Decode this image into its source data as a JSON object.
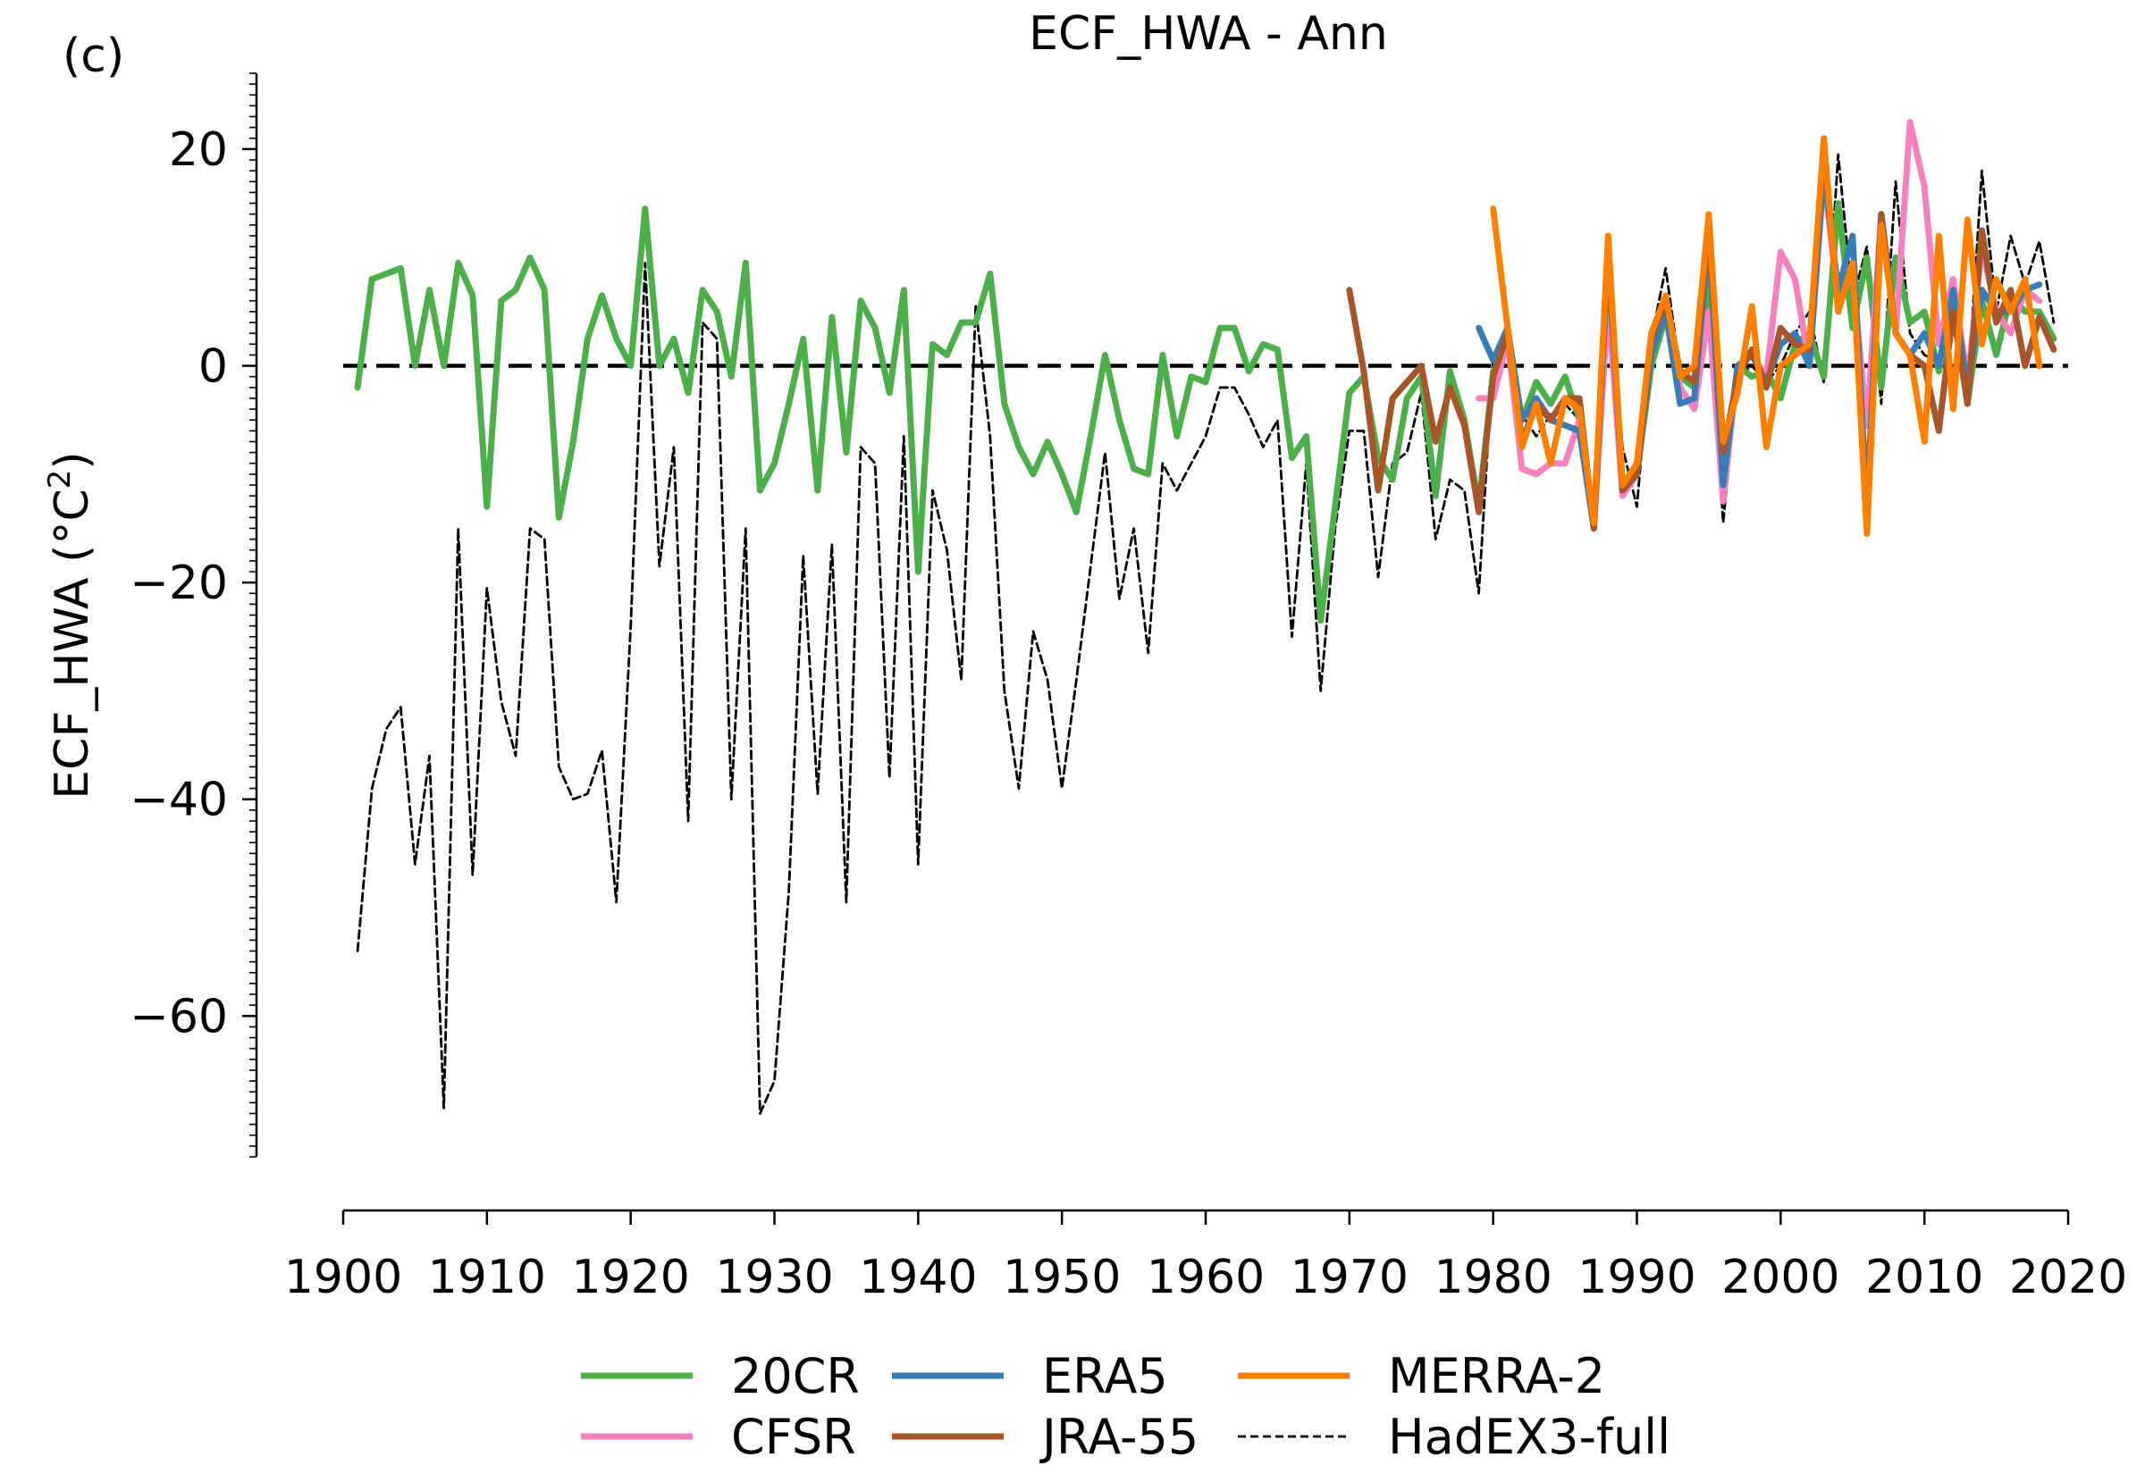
{
  "chart_data": {
    "type": "line",
    "panel_label": "(c)",
    "title": "ECF_HWA - Ann",
    "ylabel_main": "ECF_HWA (°C",
    "ylabel_sup": "2",
    "ylabel_close": ")",
    "xlabel": "",
    "xlim": [
      1900,
      2020
    ],
    "ylim": [
      -73,
      27
    ],
    "x_ticks": [
      1900,
      1910,
      1920,
      1930,
      1940,
      1950,
      1960,
      1970,
      1980,
      1990,
      2000,
      2010,
      2020
    ],
    "y_ticks": [
      20,
      0,
      -20,
      -40,
      -60
    ],
    "y_tick_labels": [
      "20",
      "0",
      "−20",
      "−40",
      "−60"
    ],
    "reference_line": 0,
    "legend_placement": "bottom",
    "grid": false,
    "series": [
      {
        "name": "20CR",
        "color": "#4daf4a",
        "style": "solid",
        "start": 1901,
        "values": [
          -2,
          8,
          8.5,
          9,
          0,
          7,
          0,
          9.5,
          6.5,
          -13,
          6,
          7,
          10,
          7,
          -14,
          -7,
          2.5,
          6.5,
          2.5,
          0,
          14.5,
          0,
          2.5,
          -2.5,
          7,
          5,
          -1,
          9.5,
          -11.5,
          -9,
          -3.5,
          2.5,
          -11.5,
          4.5,
          -8,
          6,
          3.5,
          -2.5,
          7,
          -19,
          2,
          1,
          4,
          4,
          8.5,
          -3.5,
          -7.5,
          -10,
          -7,
          -10,
          -13.5,
          -6.5,
          1,
          -5,
          -9.5,
          -10,
          1,
          -6.5,
          -1,
          -1.5,
          3.5,
          3.5,
          -0.5,
          2,
          1.5,
          -8.5,
          -6.5,
          -23.5,
          -13,
          -2.5,
          -1,
          -8.5,
          -10.5,
          -3,
          -1,
          -12,
          -0.5,
          -5,
          -13,
          -0.5,
          2,
          -5,
          -1.5,
          -3.5,
          -1,
          -5,
          -15,
          6.5,
          -11.5,
          -10,
          0,
          4.5,
          -1,
          -2,
          8.5,
          -12.5,
          0,
          -1,
          -0.5,
          -3,
          2,
          3,
          -1,
          15,
          3.5,
          10,
          -2,
          10,
          4,
          5,
          -0.5,
          6,
          -3.5,
          6,
          1,
          6.5,
          5,
          5,
          2.5
        ]
      },
      {
        "name": "CFSR",
        "color": "#f781bf",
        "style": "solid",
        "start": 1979,
        "values": [
          -3,
          -3,
          2.5,
          -9.5,
          -10,
          -9,
          -9,
          -5,
          -15,
          6,
          -12,
          -10,
          2,
          6,
          -2,
          -4,
          5,
          -12.5,
          0,
          1,
          -1,
          10.5,
          8,
          0,
          17.5,
          6,
          8.5,
          -5.5,
          14,
          3,
          22.5,
          16.5,
          2,
          8,
          -1.5,
          11,
          5,
          3,
          7,
          6
        ]
      },
      {
        "name": "ERA5",
        "color": "#377eb8",
        "style": "solid",
        "start": 1979,
        "values": [
          3.5,
          0.5,
          3.5,
          -5,
          -3,
          -5,
          -5.5,
          -6,
          -15,
          10,
          -11,
          -10,
          1,
          5,
          -3.5,
          -3,
          12,
          -11,
          0,
          1,
          -1.5,
          2,
          3,
          0,
          18,
          7,
          12,
          -13,
          14,
          3,
          1,
          3,
          0,
          7,
          -2,
          7,
          5,
          5,
          7,
          7.5
        ]
      },
      {
        "name": "JRA-55",
        "color": "#a65628",
        "style": "solid",
        "start": 1970,
        "values": [
          7,
          -0.5,
          -11.5,
          -3,
          -1.5,
          0,
          -7,
          -2,
          -5.5,
          -13.5,
          -1,
          3,
          -7,
          -3.5,
          -5,
          -3,
          -3,
          -15,
          11,
          -11.5,
          -10,
          2.5,
          6,
          -0.5,
          -1.5,
          13,
          -8,
          -1,
          1.5,
          -2,
          3.5,
          2,
          1.5,
          20.5,
          5,
          9.5,
          -15,
          14,
          3,
          1,
          0,
          -6,
          5,
          -3.5,
          12.5,
          4,
          7,
          0,
          4.5,
          1.5
        ]
      },
      {
        "name": "MERRA-2",
        "color": "#ff7f00",
        "style": "solid",
        "start": 1980,
        "values": [
          14.5,
          3.5,
          -7.5,
          -3.5,
          -9,
          -3,
          -4,
          -14.5,
          12,
          -11,
          -9,
          3,
          6.5,
          -1,
          0,
          14,
          -7,
          -2.5,
          5.5,
          -7.5,
          0,
          1,
          2,
          21,
          5,
          9.5,
          -15.5,
          13,
          3,
          1,
          -7,
          12,
          -4,
          13.5,
          2,
          8,
          5,
          8,
          0
        ]
      },
      {
        "name": "HadEX3-full",
        "color": "#000000",
        "style": "dashed",
        "start": 1901,
        "values": [
          -54,
          -39,
          -33.5,
          -31.5,
          -46,
          -36,
          -68.5,
          -15,
          -47,
          -20.5,
          -31,
          -36,
          -15,
          -16,
          -37,
          -40,
          -39.5,
          -35.5,
          -49.5,
          -24,
          9.5,
          -18.5,
          -7.5,
          -42,
          4,
          2.5,
          -40,
          -15,
          -69,
          -66,
          -48.5,
          -17.5,
          -39.5,
          -16.5,
          -49.5,
          -7.5,
          -9,
          -38,
          -6.5,
          -46,
          -11.5,
          -17,
          -29,
          5.5,
          -6.5,
          -30,
          -39,
          -24.5,
          -29,
          -39,
          -29,
          -18.5,
          -8,
          -21.5,
          -15,
          -26.5,
          -9,
          -11.5,
          -9,
          -6.5,
          -2,
          -2,
          -4.5,
          -7.5,
          -5,
          -25,
          -9,
          -30,
          -15,
          -6,
          -6,
          -19.5,
          -9,
          -8,
          -2.5,
          -16,
          -10.5,
          -11.5,
          -21,
          1,
          2,
          -4.5,
          -6.5,
          -4.5,
          -3.5,
          -5,
          -15,
          10,
          -7.5,
          -13,
          2.5,
          9,
          -0.5,
          -2,
          8,
          -14.5,
          -1,
          0,
          -1.5,
          0,
          3,
          5,
          -1.5,
          19.5,
          6,
          11,
          -3.5,
          17,
          3,
          1,
          0.5,
          6.5,
          -2.5,
          18,
          5,
          12,
          7.5,
          11.5,
          4
        ]
      }
    ]
  }
}
